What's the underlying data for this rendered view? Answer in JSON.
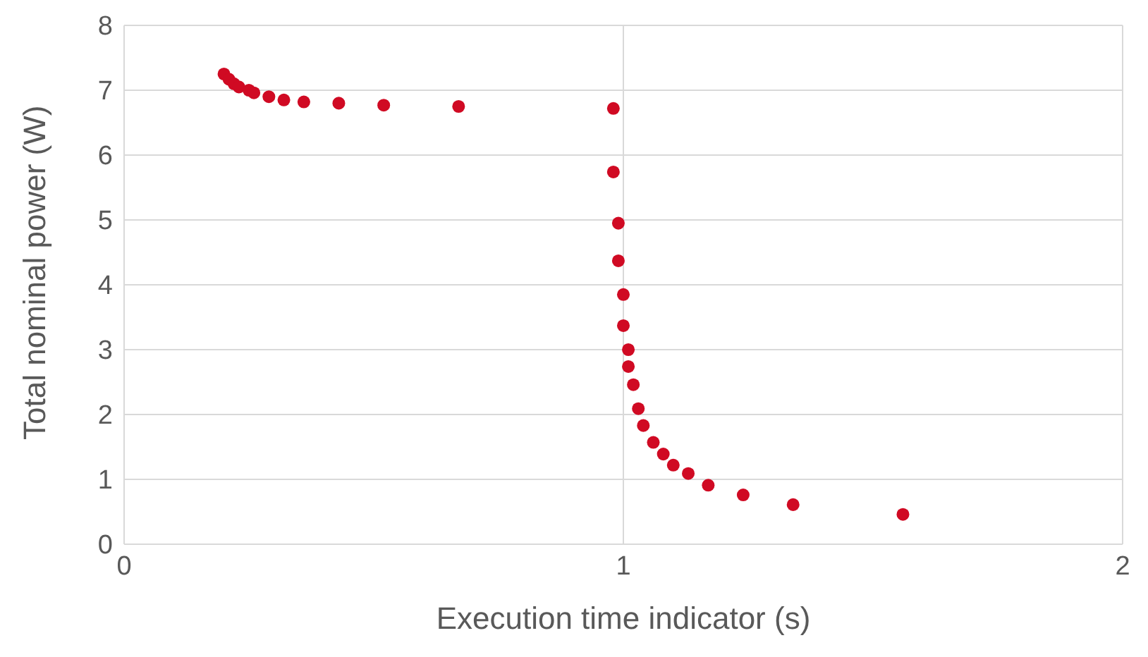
{
  "chart_data": {
    "type": "scatter",
    "xlabel": "Execution time indicator (s)",
    "ylabel": "Total nominal power (W)",
    "x": [
      0.2,
      0.21,
      0.22,
      0.23,
      0.25,
      0.26,
      0.29,
      0.32,
      0.36,
      0.43,
      0.52,
      0.67,
      0.98,
      0.98,
      0.99,
      0.99,
      1.0,
      1.0,
      1.01,
      1.01,
      1.02,
      1.03,
      1.04,
      1.06,
      1.08,
      1.1,
      1.13,
      1.17,
      1.24,
      1.34,
      1.56
    ],
    "series": [
      {
        "color": "#d00a23",
        "values": [
          7.25,
          7.17,
          7.1,
          7.05,
          7.0,
          6.96,
          6.9,
          6.85,
          6.82,
          6.8,
          6.77,
          6.75,
          6.72,
          5.74,
          4.95,
          4.37,
          3.85,
          3.37,
          3.0,
          2.74,
          2.46,
          2.09,
          1.83,
          1.57,
          1.39,
          1.22,
          1.09,
          0.91,
          0.76,
          0.61,
          0.46
        ]
      }
    ],
    "xlim": [
      0,
      2
    ],
    "xticks": [
      0,
      1,
      2
    ],
    "ylim": [
      0,
      8
    ],
    "yticks": [
      0,
      1,
      2,
      3,
      4,
      5,
      6,
      7,
      8
    ],
    "grid": true,
    "marker": "circle",
    "legend": false
  }
}
